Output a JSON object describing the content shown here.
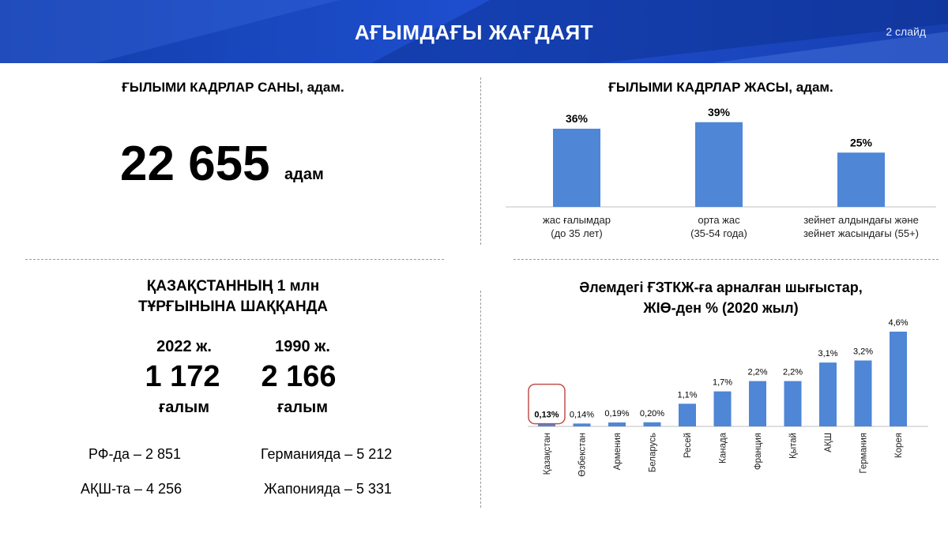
{
  "header": {
    "title": "АҒЫМДАҒЫ ЖАҒДАЯТ",
    "slide_label": "2 слайд"
  },
  "panel_count": {
    "title": "ҒЫЛЫМИ КАДРЛАР САНЫ, адам.",
    "value": "22 655",
    "unit": "адам"
  },
  "panel_per_million": {
    "title_line1": "ҚАЗАҚСТАННЫҢ 1 млн",
    "title_line2": "ТҰРҒЫНЫНА ШАҚҚАНДА",
    "columns": [
      {
        "year": "2022 ж.",
        "value": "1 172",
        "unit": "ғалым"
      },
      {
        "year": "1990 ж.",
        "value": "2 166",
        "unit": "ғалым"
      }
    ],
    "comparisons": [
      {
        "label": "РФ-да – 2 851"
      },
      {
        "label": "Германияда  – 5 212"
      },
      {
        "label": "АҚШ-та  – 4 256"
      },
      {
        "label": "Жапонияда  – 5 331"
      }
    ]
  },
  "colors": {
    "bar": "#4f86d6",
    "highlight": "#c0504d",
    "header": "#1e4ecf"
  },
  "chart_data": [
    {
      "type": "bar",
      "title": "ҒЫЛЫМИ КАДРЛАР ЖАСЫ, адам.",
      "categories": [
        [
          "жас ғалымдар",
          "(до 35 лет)"
        ],
        [
          "орта жас",
          "(35-54 года)"
        ],
        [
          "зейнет  алдындағы және",
          "зейнет жасындағы (55+)"
        ]
      ],
      "values": [
        36,
        39,
        25
      ],
      "data_labels": [
        "36%",
        "39%",
        "25%"
      ],
      "ylim": [
        0,
        40
      ],
      "grid": false
    },
    {
      "type": "bar",
      "title_line1": "Әлемдегі ҒЗТКЖ-ға арналған шығыстар,",
      "title_line2": "ЖІӨ-ден % (2020 жыл)",
      "categories": [
        "Қазақстан",
        "Өзбекстан",
        "Армения",
        "Беларусь",
        "Ресей",
        "Канада",
        "Франция",
        "Қытай",
        "АҚШ",
        "Германия",
        "Корея"
      ],
      "values": [
        0.13,
        0.14,
        0.19,
        0.2,
        1.1,
        1.7,
        2.2,
        2.2,
        3.1,
        3.2,
        4.6
      ],
      "data_labels": [
        "0,13%",
        "0,14%",
        "0,19%",
        "0,20%",
        "1,1%",
        "1,7%",
        "2,2%",
        "2,2%",
        "3,1%",
        "3,2%",
        "4,6%"
      ],
      "highlighted_category": "Қазақстан",
      "ylim": [
        0,
        4.6
      ],
      "grid": false
    }
  ]
}
